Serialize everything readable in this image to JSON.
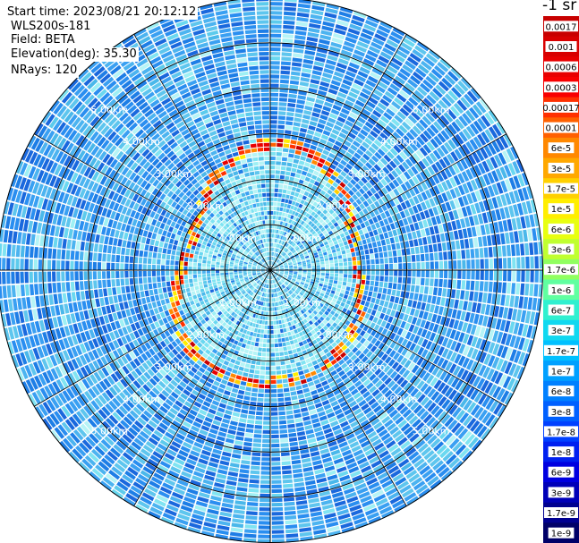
{
  "header": {
    "start_time": "Start time: 2023/08/21 20:12:12",
    "station": "WLS200s-181",
    "field": "Field: BETA",
    "elevation": "Elevation(deg): 35.30",
    "nrays": "NRays: 120"
  },
  "colorbar": {
    "title": "-1 sr",
    "labels": [
      "0.0017",
      "0.001",
      "0.0006",
      "0.0003",
      "0.00017",
      "0.0001",
      "6e-5",
      "3e-5",
      "1.7e-5",
      "1e-5",
      "6e-6",
      "3e-6",
      "1.7e-6",
      "1e-6",
      "6e-7",
      "3e-7",
      "1.7e-7",
      "1e-7",
      "6e-8",
      "3e-8",
      "1.7e-8",
      "1e-8",
      "6e-9",
      "3e-9",
      "1.7e-9",
      "1e-9"
    ],
    "colors": [
      "#c80000",
      "#d80000",
      "#e80000",
      "#f80000",
      "#ff3000",
      "#ff6000",
      "#ff8800",
      "#ffa800",
      "#ffd000",
      "#ffee00",
      "#e8ff10",
      "#c0ff30",
      "#90ff60",
      "#60ffa0",
      "#30f0d0",
      "#10d8f0",
      "#00c0ff",
      "#00a0ff",
      "#0080ff",
      "#0060ff",
      "#0040ff",
      "#0020f0",
      "#0000e0",
      "#0000b8",
      "#000090",
      "#000068"
    ]
  },
  "chart_data": {
    "type": "polar-ppi",
    "field": "BETA",
    "units": "sr-1",
    "elevation_deg": 35.3,
    "n_rays": 120,
    "ring_labels": [
      "1.00km",
      "2.00km",
      "3.00km",
      "4.00km",
      "5.00km"
    ],
    "ring_ranges_km": [
      1,
      2,
      3,
      4,
      5
    ],
    "max_range_km": 6.0,
    "spoke_angles_deg": [
      0,
      30,
      60,
      90,
      120,
      150,
      180,
      210,
      240,
      270,
      300,
      330
    ],
    "features": [
      {
        "name": "aerosol-layer-ring",
        "range_km": [
          2.0,
          2.6
        ],
        "approx_value": "1e-5 to 1e-3"
      },
      {
        "name": "boundary-layer-near-field",
        "range_km": [
          0,
          2.0
        ],
        "approx_value": "6e-7 to 1.7e-6"
      },
      {
        "name": "far-field-background",
        "range_km": [
          2.6,
          6.0
        ],
        "approx_value": "6e-8 to 1.7e-7"
      }
    ]
  }
}
